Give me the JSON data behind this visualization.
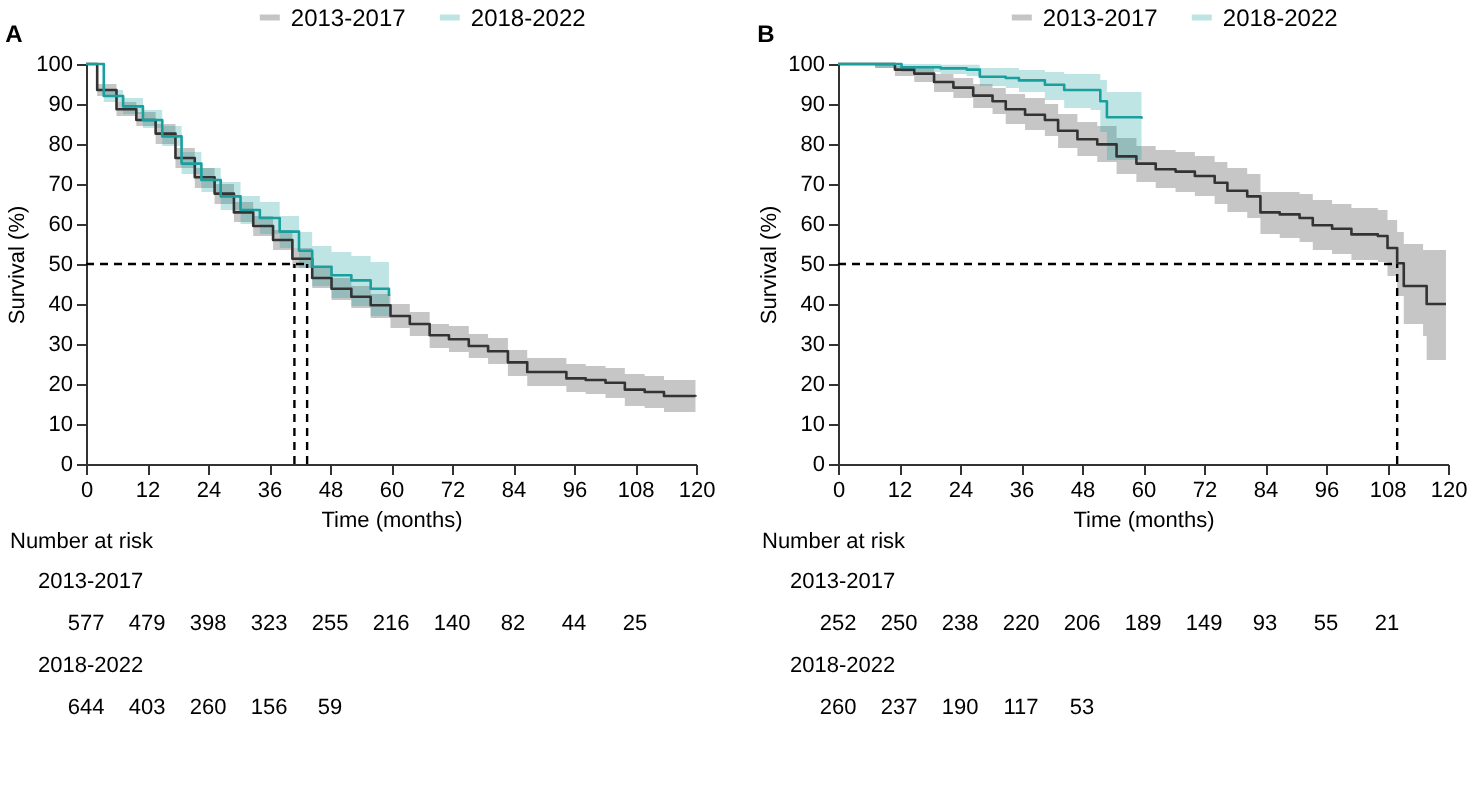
{
  "chart_data": [
    {
      "type": "step",
      "title": "A",
      "xlabel": "Time (months)",
      "ylabel": "Survival (%)",
      "xlim": [
        0,
        120
      ],
      "xticks": [
        0,
        12,
        24,
        36,
        48,
        60,
        72,
        84,
        96,
        108,
        120
      ],
      "ylim": [
        0,
        100
      ],
      "yticks": [
        0,
        10,
        20,
        30,
        40,
        50,
        60,
        70,
        80,
        90,
        100
      ],
      "legend": "top",
      "grid": false,
      "series": [
        {
          "name": "2013-2017",
          "color": "#333333",
          "x": [
            0,
            2.2,
            6,
            9.9,
            13.7,
            17.6,
            21.4,
            25.3,
            29.1,
            32.9,
            36.8,
            40.6,
            44.5,
            48.3,
            52.2,
            56,
            59.9,
            63.7,
            67.6,
            71.4,
            75.3,
            79.1,
            83,
            86.8,
            90.6,
            94.5,
            98.3,
            102.2,
            106,
            109.9,
            113.7,
            119.9
          ],
          "values": [
            100,
            93.5,
            88.7,
            86,
            82.6,
            76.5,
            71.7,
            67.6,
            62.9,
            59.5,
            56,
            51.3,
            46.5,
            43.8,
            41.8,
            39.7,
            37,
            35,
            32.2,
            31.2,
            29.5,
            28.2,
            25.4,
            23,
            23,
            21.4,
            21,
            20.3,
            18.6,
            18,
            17,
            16.9
          ],
          "lower": [
            100,
            92,
            87,
            84.5,
            80,
            74,
            69,
            65,
            60.5,
            57,
            53.5,
            49,
            44,
            41,
            39,
            36.5,
            34,
            32,
            29,
            28,
            26.5,
            25,
            22,
            19.5,
            19.5,
            18,
            17.5,
            16.5,
            14.5,
            14,
            13,
            13
          ],
          "upper": [
            100,
            95,
            90.5,
            88,
            85,
            79,
            74,
            70,
            65.5,
            62,
            58.5,
            54,
            49,
            46.5,
            44.5,
            42.5,
            40,
            38,
            35,
            34.5,
            32.5,
            31.5,
            28.5,
            26.5,
            26.5,
            25,
            24.5,
            24,
            22.5,
            22,
            21,
            21
          ]
        },
        {
          "name": "2018-2022",
          "color": "#1a9e9e",
          "x": [
            0,
            3.5,
            7.3,
            11.2,
            15,
            18.8,
            22.7,
            26.5,
            30.4,
            34.2,
            38.1,
            41.9,
            44.5,
            48.3,
            52.2,
            56,
            59.6
          ],
          "values": [
            100,
            92,
            89.4,
            86,
            81.9,
            75.1,
            71,
            66.9,
            63.5,
            61.5,
            58.1,
            53.3,
            49.3,
            47.2,
            45.9,
            43.8,
            42
          ],
          "lower": [
            100,
            90.5,
            87.5,
            84,
            79.5,
            72.5,
            68,
            63.5,
            60,
            57.5,
            54,
            49,
            44.5,
            41.5,
            39.5,
            37,
            34.6
          ],
          "upper": [
            100,
            93.5,
            91.5,
            88.5,
            84.5,
            78,
            74,
            70.5,
            67,
            65.5,
            62,
            58,
            54.5,
            53,
            52,
            50.5,
            48.8
          ]
        }
      ],
      "ref_lines": [
        {
          "axis": "y",
          "value": 50,
          "line_style": "dashed"
        },
        {
          "axis": "x",
          "value": 41,
          "line_style": "dashed"
        },
        {
          "axis": "x",
          "value": 43.5,
          "line_style": "dashed"
        }
      ],
      "annotations": [
        "Number at risk",
        "2013-2017",
        "577",
        "479",
        "398",
        "323",
        "255",
        "216",
        "140",
        "82",
        "44",
        "25",
        "2018-2022",
        "644",
        "403",
        "260",
        "156",
        "59"
      ]
    },
    {
      "type": "step",
      "title": "B",
      "xlabel": "Time (months)",
      "ylabel": "Survival (%)",
      "xlim": [
        0,
        120
      ],
      "xticks": [
        0,
        12,
        24,
        36,
        48,
        60,
        72,
        84,
        96,
        108,
        120
      ],
      "ylim": [
        0,
        100
      ],
      "yticks": [
        0,
        10,
        20,
        30,
        40,
        50,
        60,
        70,
        80,
        90,
        100
      ],
      "legend": "top",
      "grid": false,
      "series": [
        {
          "name": "2013-2017",
          "color": "#333333",
          "x": [
            0,
            7.3,
            11.2,
            15,
            18.9,
            22.7,
            26.6,
            30.4,
            33,
            36.8,
            40.7,
            43.3,
            47.1,
            51,
            54.8,
            58.7,
            62.5,
            66.4,
            70.2,
            74.1,
            76.6,
            80.5,
            83.1,
            86.9,
            90.8,
            93.4,
            97.2,
            101,
            106.2,
            108.1,
            110,
            111.3,
            115.1,
            115.8,
            119.6
          ],
          "values": [
            100,
            100,
            98.6,
            97.6,
            95.5,
            94.1,
            92.1,
            90.7,
            88.7,
            87.3,
            86,
            83.3,
            81.2,
            79.9,
            76.9,
            75.1,
            73.7,
            73.1,
            72,
            70.3,
            68.3,
            66.9,
            62.9,
            62.4,
            61.5,
            59.7,
            58.8,
            57.4,
            57,
            54,
            50.2,
            44.5,
            44.5,
            40,
            40
          ],
          "lower": [
            100,
            99,
            97,
            95.5,
            93,
            91.5,
            89,
            87.5,
            85,
            83.5,
            82,
            79,
            77,
            75.5,
            72.5,
            70.5,
            69,
            68,
            67,
            65,
            63,
            61.5,
            57.5,
            56.5,
            55.5,
            53.5,
            52.5,
            51,
            50.5,
            47,
            42,
            35,
            32,
            26,
            26
          ],
          "upper": [
            100,
            100,
            99.5,
            99,
            97.5,
            96.5,
            95,
            94,
            92.5,
            91.5,
            90,
            87.5,
            85.5,
            84.5,
            81.5,
            79.5,
            78.5,
            78,
            77,
            75.5,
            74,
            72.5,
            68,
            68,
            67.5,
            66,
            65,
            64,
            63.5,
            61,
            58,
            55,
            53.5,
            53.5,
            53.5
          ]
        },
        {
          "name": "2018-2022",
          "color": "#1a9e9e",
          "x": [
            0,
            7.3,
            12.5,
            20.2,
            25.3,
            27.9,
            33,
            35.6,
            40.7,
            44.5,
            49.7,
            51.6,
            52.9,
            59.7
          ],
          "values": [
            100,
            100,
            99.2,
            98.9,
            98.6,
            96.8,
            96.5,
            95.9,
            94.8,
            93.5,
            93.5,
            90.7,
            86.7,
            86.3
          ],
          "lower": [
            100,
            99,
            98,
            97.5,
            97,
            94.5,
            94,
            93,
            91,
            89,
            88.5,
            83,
            76,
            75.1
          ],
          "upper": [
            100,
            100,
            100,
            99.8,
            99.8,
            99,
            99,
            98.5,
            98,
            97.5,
            97.5,
            96,
            93,
            93
          ]
        }
      ],
      "ref_lines": [
        {
          "axis": "y",
          "value": 50,
          "line_style": "dashed"
        },
        {
          "axis": "x",
          "value": 110,
          "line_style": "dashed"
        }
      ],
      "annotations": [
        "Number at risk",
        "2013-2017",
        "252",
        "250",
        "238",
        "220",
        "206",
        "189",
        "149",
        "93",
        "55",
        "21",
        "2018-2022",
        "260",
        "237",
        "190",
        "117",
        "53"
      ]
    }
  ]
}
